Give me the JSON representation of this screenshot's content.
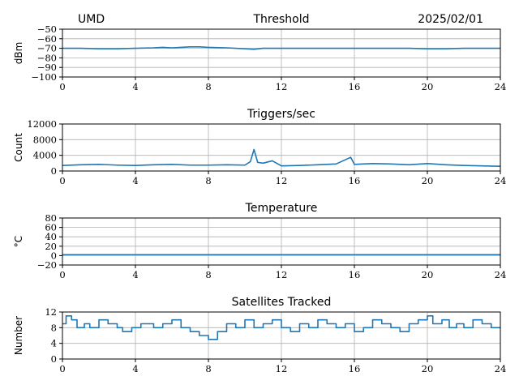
{
  "header": {
    "site": "UMD",
    "date": "2025/02/01"
  },
  "chart_data": [
    {
      "type": "line",
      "title": "Threshold",
      "xlabel": "",
      "ylabel": "dBm",
      "xlim": [
        0,
        24
      ],
      "ylim": [
        -100,
        -50
      ],
      "x_ticks": [
        0,
        4,
        8,
        12,
        16,
        20,
        24
      ],
      "y_ticks": [
        -100,
        -90,
        -80,
        -70,
        -60,
        -50
      ],
      "x_tick_labels": [
        "0",
        "4",
        "8",
        "12",
        "16",
        "20",
        "24"
      ],
      "y_tick_labels": [
        "−100",
        "−90",
        "−80",
        "−70",
        "−60",
        "−50"
      ],
      "grid": true,
      "x": [
        0,
        1,
        2,
        3,
        4,
        5,
        5.5,
        6,
        6.5,
        7,
        7.5,
        8,
        9,
        10,
        10.5,
        11,
        11.5,
        12,
        13,
        14,
        15,
        16,
        17,
        18,
        19,
        20,
        21,
        22,
        23,
        24
      ],
      "y": [
        -70,
        -70,
        -70.5,
        -70.5,
        -70,
        -69.5,
        -69,
        -69.5,
        -69,
        -68.5,
        -68.5,
        -69,
        -69.5,
        -70.5,
        -71,
        -70,
        -70,
        -70,
        -70,
        -70,
        -70,
        -70,
        -70,
        -70,
        -70,
        -70.5,
        -70.5,
        -70,
        -70,
        -70
      ]
    },
    {
      "type": "line",
      "title": "Triggers/sec",
      "xlabel": "",
      "ylabel": "Count",
      "xlim": [
        0,
        24
      ],
      "ylim": [
        0,
        12000
      ],
      "x_ticks": [
        0,
        4,
        8,
        12,
        16,
        20,
        24
      ],
      "y_ticks": [
        0,
        4000,
        8000,
        12000
      ],
      "x_tick_labels": [
        "0",
        "4",
        "8",
        "12",
        "16",
        "20",
        "24"
      ],
      "y_tick_labels": [
        "0",
        "4000",
        "8000",
        "12000"
      ],
      "grid": true,
      "x": [
        0,
        1,
        2,
        3,
        4,
        5,
        6,
        7,
        8,
        9,
        10,
        10.3,
        10.5,
        10.7,
        11,
        11.5,
        12,
        13,
        14,
        15,
        15.8,
        16,
        17,
        18,
        19,
        20,
        21,
        22,
        23,
        24
      ],
      "y": [
        1400,
        1600,
        1700,
        1500,
        1400,
        1600,
        1700,
        1500,
        1500,
        1600,
        1500,
        2400,
        5500,
        2200,
        2000,
        2600,
        1300,
        1400,
        1600,
        1800,
        3500,
        1700,
        1900,
        1800,
        1600,
        1900,
        1600,
        1400,
        1300,
        1200
      ]
    },
    {
      "type": "line",
      "title": "Temperature",
      "xlabel": "",
      "ylabel": "°C",
      "xlim": [
        0,
        24
      ],
      "ylim": [
        -20,
        80
      ],
      "x_ticks": [
        0,
        4,
        8,
        12,
        16,
        20,
        24
      ],
      "y_ticks": [
        -20,
        0,
        20,
        40,
        60,
        80
      ],
      "x_tick_labels": [
        "0",
        "4",
        "8",
        "12",
        "16",
        "20",
        "24"
      ],
      "y_tick_labels": [
        "−20",
        "0",
        "20",
        "40",
        "60",
        "80"
      ],
      "grid": true,
      "x": [
        0,
        24
      ],
      "y": [
        2,
        2
      ]
    },
    {
      "type": "line",
      "title": "Satellites Tracked",
      "xlabel": "",
      "ylabel": "Number",
      "xlim": [
        0,
        24
      ],
      "ylim": [
        0,
        12
      ],
      "x_ticks": [
        0,
        4,
        8,
        12,
        16,
        20,
        24
      ],
      "y_ticks": [
        0,
        4,
        8,
        12
      ],
      "x_tick_labels": [
        "0",
        "4",
        "8",
        "12",
        "16",
        "20",
        "24"
      ],
      "y_tick_labels": [
        "0",
        "4",
        "8",
        "12"
      ],
      "grid": true,
      "step": true,
      "x": [
        0,
        0.2,
        0.5,
        0.8,
        1.2,
        1.5,
        2,
        2.5,
        3,
        3.3,
        3.8,
        4.3,
        5,
        5.5,
        6,
        6.5,
        7,
        7.5,
        8,
        8.5,
        9,
        9.5,
        10,
        10.5,
        11,
        11.5,
        12,
        12.5,
        13,
        13.5,
        14,
        14.5,
        15,
        15.5,
        16,
        16.5,
        17,
        17.5,
        18,
        18.5,
        19,
        19.5,
        20,
        20.3,
        20.8,
        21.2,
        21.6,
        22,
        22.5,
        23,
        23.5,
        24
      ],
      "y": [
        9,
        11,
        10,
        8,
        9,
        8,
        10,
        9,
        8,
        7,
        8,
        9,
        8,
        9,
        10,
        8,
        7,
        6,
        5,
        7,
        9,
        8,
        10,
        8,
        9,
        10,
        8,
        7,
        9,
        8,
        10,
        9,
        8,
        9,
        7,
        8,
        10,
        9,
        8,
        7,
        9,
        10,
        11,
        9,
        10,
        8,
        9,
        8,
        10,
        9,
        8,
        8
      ]
    }
  ]
}
